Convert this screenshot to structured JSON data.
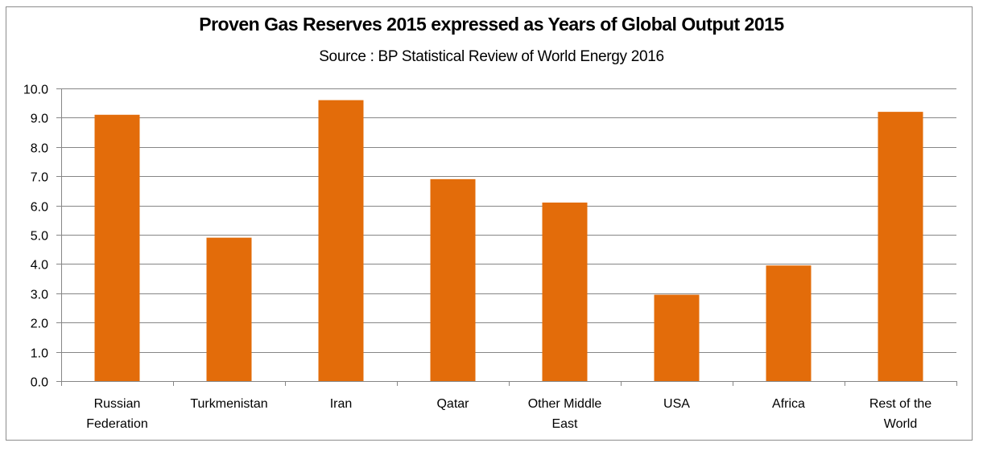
{
  "chart_data": {
    "type": "bar",
    "title": "Proven Gas Reserves 2015 expressed as Years of Global Output 2015",
    "subtitle": "Source : BP Statistical Review of World Energy 2016",
    "xlabel": "",
    "ylabel": "",
    "categories": [
      [
        "Russian",
        "Federation"
      ],
      [
        "Turkmenistan"
      ],
      [
        "Iran"
      ],
      [
        "Qatar"
      ],
      [
        "Other Middle",
        "East"
      ],
      [
        "USA"
      ],
      [
        "Africa"
      ],
      [
        "Rest of the",
        "World"
      ]
    ],
    "values": [
      9.1,
      4.9,
      9.6,
      6.9,
      6.1,
      2.95,
      3.95,
      9.2
    ],
    "ylim": [
      0,
      10
    ],
    "yticks": [
      "0.0",
      "1.0",
      "2.0",
      "3.0",
      "4.0",
      "5.0",
      "6.0",
      "7.0",
      "8.0",
      "9.0",
      "10.0"
    ],
    "grid": true,
    "legend": "none",
    "bar_color": "#e36c0a",
    "grid_color": "#868686"
  }
}
